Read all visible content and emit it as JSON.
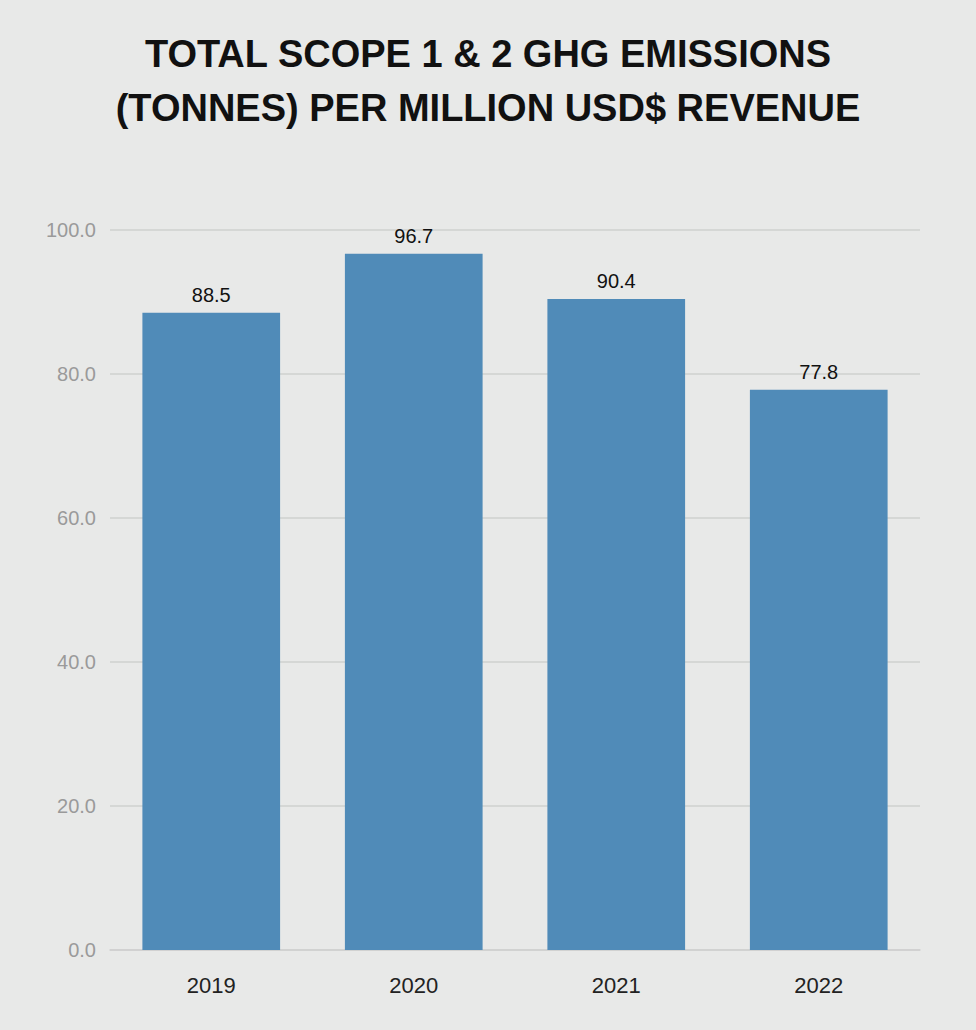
{
  "chart_data": {
    "type": "bar",
    "title": "TOTAL SCOPE 1 & 2 GHG EMISSIONS\n(TONNES) PER MILLION USD$ REVENUE",
    "categories": [
      "2019",
      "2020",
      "2021",
      "2022"
    ],
    "values": [
      88.5,
      96.7,
      90.4,
      77.8
    ],
    "color": "#508bb8",
    "ylim": [
      0,
      100
    ],
    "yticks": [
      {
        "value": 0,
        "label": "0.0"
      },
      {
        "value": 20,
        "label": "20.0"
      },
      {
        "value": 40,
        "label": "40.0"
      },
      {
        "value": 60,
        "label": "60.0"
      },
      {
        "value": 80,
        "label": "80.0"
      },
      {
        "value": 100,
        "label": "100.0"
      }
    ],
    "grid": true,
    "data_labels": true
  }
}
